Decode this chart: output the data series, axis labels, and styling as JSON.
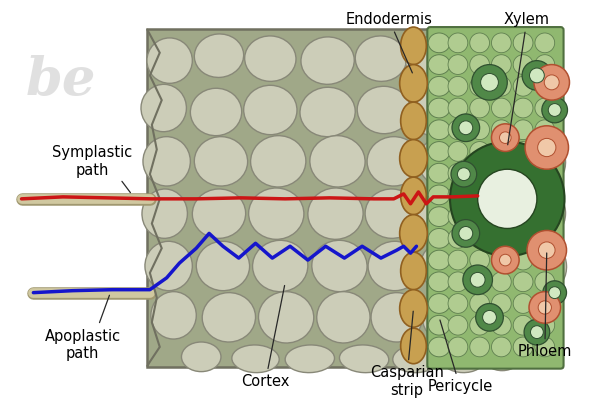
{
  "background_color": "#ffffff",
  "labels": {
    "endodermis": "Endodermis",
    "xylem": "Xylem",
    "symplastic": "Symplastic\npath",
    "apoplastic": "Apoplastic\npath",
    "cortex": "Cortex",
    "casparian": "Casparian\nstrip",
    "pericycle": "Pericycle",
    "phloem": "Phloem"
  },
  "colors": {
    "root_outer": "#a0a888",
    "root_border": "#707060",
    "cortex_cell_fill": "#cccdb8",
    "cortex_cell_edge": "#888878",
    "endo_fill": "#c8a050",
    "endo_edge": "#906020",
    "vasc_bg": "#90b870",
    "vasc_edge": "#507040",
    "pericycle_fill": "#b0cc90",
    "pericycle_edge": "#608050",
    "xylem_large_fill": "#357030",
    "xylem_large_edge": "#254520",
    "xylem_small_fill": "#508848",
    "xylem_small_edge": "#305030",
    "phloem_fill": "#e09070",
    "phloem_edge": "#b05030",
    "phloem_inner": "#f0c8a8",
    "symplastic": "#cc1515",
    "apoplastic": "#1515cc",
    "hair_fill": "#d0c8a0",
    "hair_edge": "#a09870",
    "line_color": "#282828",
    "watermark": "#c8c8c8"
  },
  "font_size": 10.5
}
